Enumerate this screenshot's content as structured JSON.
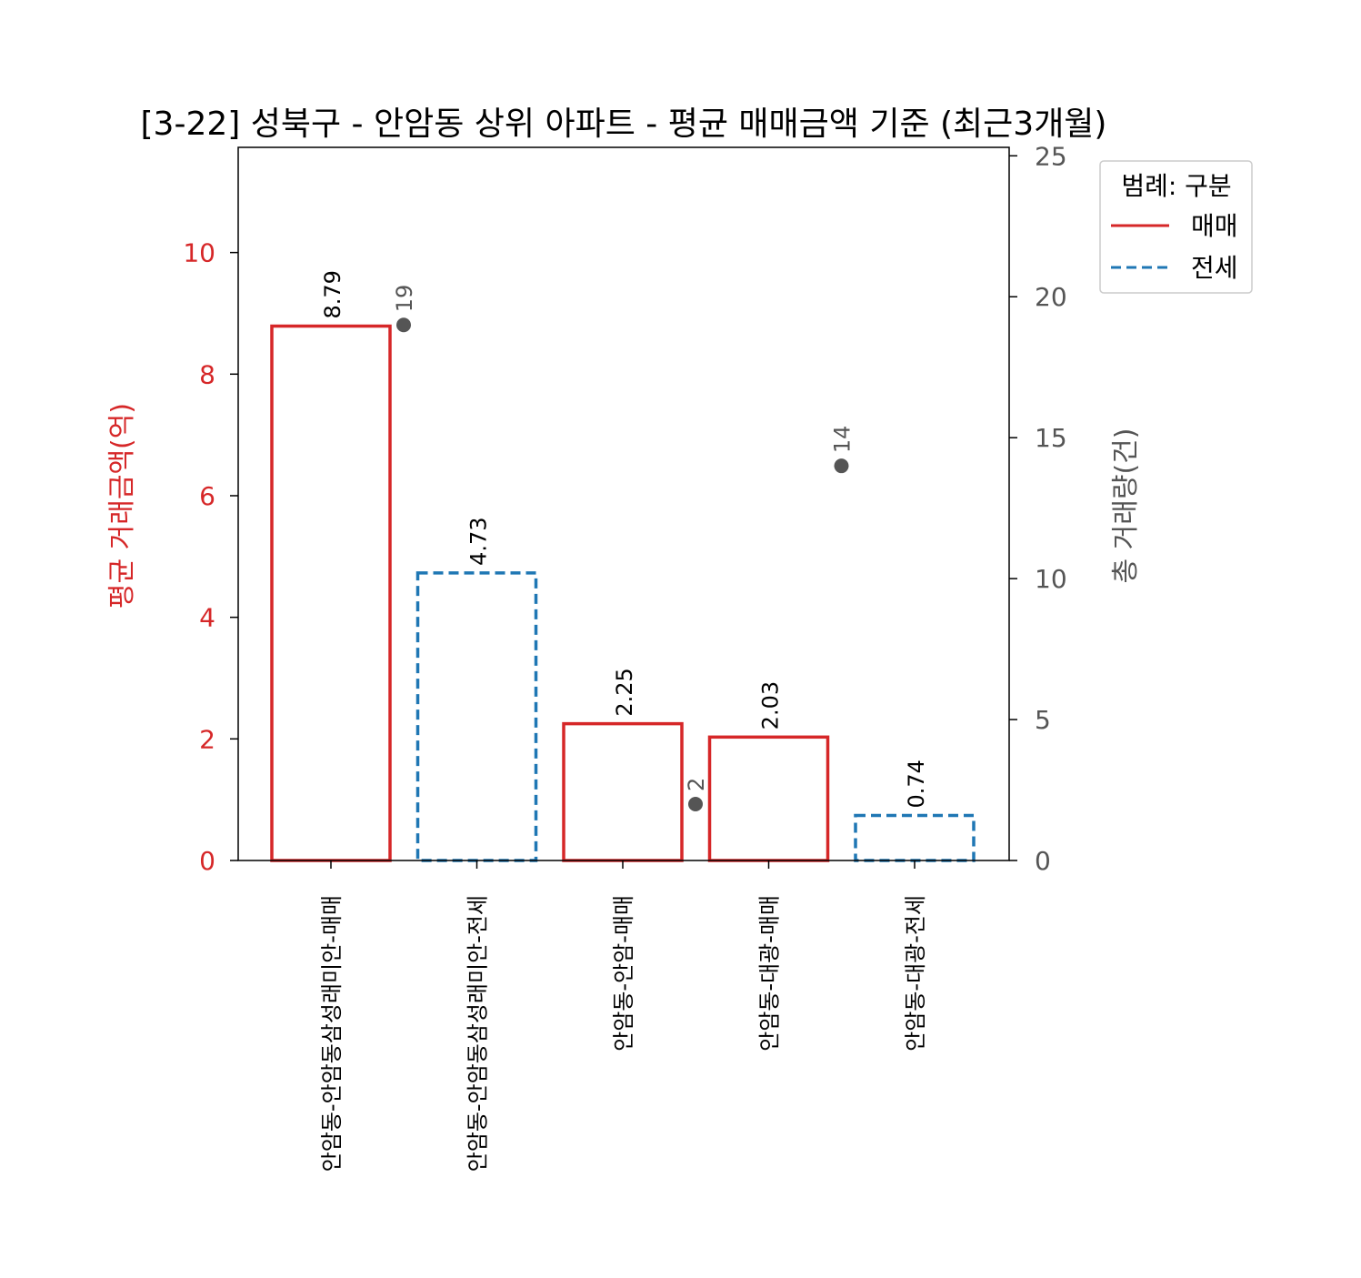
{
  "chart_data": {
    "type": "bar",
    "title": "[3-22] 성북구 - 안암동 상위 아파트 - 평균 매매금액 기준 (최근3개월)",
    "ylabel_left": "평균 거래금액(억)",
    "ylabel_right": "총 거래량(건)",
    "categories": [
      "안암동-안암동삼성래미안-매매",
      "안암동-안암동삼성래미안-전세",
      "안암동-안암-매매",
      "안암동-대광-매매",
      "안암동-대광-전세"
    ],
    "bar_values": [
      8.79,
      4.73,
      2.25,
      2.03,
      0.74
    ],
    "bar_labels": [
      "8.79",
      "4.73",
      "2.25",
      "2.03",
      "0.74"
    ],
    "bar_types": [
      "매매",
      "전세",
      "매매",
      "매매",
      "전세"
    ],
    "volume_points": [
      {
        "category_index": 0,
        "value": 19,
        "label": "19"
      },
      {
        "category_index": 2,
        "value": 2,
        "label": "2"
      },
      {
        "category_index": 3,
        "value": 14,
        "label": "14"
      }
    ],
    "ylim_left": [
      0,
      11.73
    ],
    "yticks_left": [
      "0",
      "2",
      "4",
      "6",
      "8",
      "10"
    ],
    "ylim_right": [
      0,
      25.3
    ],
    "yticks_right": [
      "0",
      "5",
      "10",
      "15",
      "20",
      "25"
    ],
    "grid": false,
    "legend": {
      "placement": "outside-right-top",
      "title": "범례: 구분",
      "entries": [
        {
          "label": "매매",
          "color": "#d62728",
          "style": "solid"
        },
        {
          "label": "전세",
          "color": "#1f77b4",
          "style": "dashed"
        }
      ]
    },
    "colors": {
      "sale": "#d62728",
      "jeonse": "#1f77b4",
      "left_axis": "#d62728",
      "right_axis": "#555555",
      "points": "#555555",
      "text": "#000000"
    }
  }
}
